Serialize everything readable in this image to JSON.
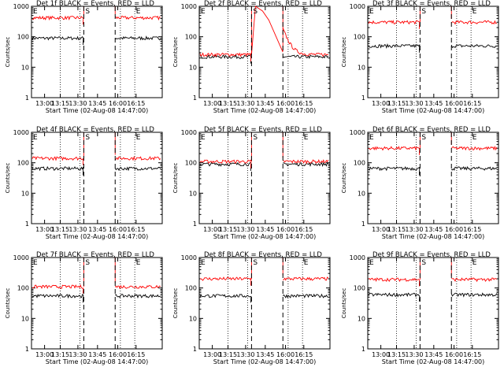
{
  "figure": {
    "xlabel": "Start Time (02-Aug-08 14:47:00)",
    "ylabel": "Counts/sec",
    "x_ticks": [
      "13:00",
      "13:15",
      "13:30",
      "13:45",
      "16:00",
      "16:15"
    ],
    "y_ticks": [
      "1",
      "10",
      "100",
      "1000"
    ],
    "markers": {
      "start": "S",
      "end": "E"
    },
    "colors": {
      "events": "#000000",
      "lld": "#ff0000"
    }
  },
  "chart_data": [
    {
      "type": "line",
      "title": "Det 1f BLACK = Events, RED = LLD",
      "xlabel": "Start Time (02-Aug-08 14:47:00)",
      "ylabel": "Counts/sec",
      "yscale": "log",
      "ylim": [
        1,
        1000
      ],
      "events_level": 90,
      "lld_level": 420,
      "events_spike": null,
      "lld_spike": null,
      "lld_decay": false,
      "series": [
        {
          "name": "Events",
          "color": "#000000"
        },
        {
          "name": "LLD",
          "color": "#ff0000"
        }
      ]
    },
    {
      "type": "line",
      "title": "Det 2f BLACK = Events, RED = LLD",
      "xlabel": "Start Time (02-Aug-08 14:47:00)",
      "ylabel": "Counts/sec",
      "yscale": "log",
      "ylim": [
        1,
        1000
      ],
      "events_level": 22,
      "lld_level": 26,
      "events_spike": null,
      "lld_spike": 1000,
      "lld_decay": true,
      "series": [
        {
          "name": "Events",
          "color": "#000000"
        },
        {
          "name": "LLD",
          "color": "#ff0000"
        }
      ]
    },
    {
      "type": "line",
      "title": "Det 3f BLACK = Events, RED = LLD",
      "xlabel": "Start Time (02-Aug-08 14:47:00)",
      "ylabel": "Counts/sec",
      "yscale": "log",
      "ylim": [
        1,
        1000
      ],
      "events_level": 50,
      "lld_level": 300,
      "events_spike": null,
      "lld_spike": null,
      "lld_decay": false,
      "series": [
        {
          "name": "Events",
          "color": "#000000"
        },
        {
          "name": "LLD",
          "color": "#ff0000"
        }
      ]
    },
    {
      "type": "line",
      "title": "Det 4f BLACK = Events, RED = LLD",
      "xlabel": "Start Time (02-Aug-08 14:47:00)",
      "ylabel": "Counts/sec",
      "yscale": "log",
      "ylim": [
        1,
        1000
      ],
      "events_level": 65,
      "lld_level": 140,
      "events_spike": null,
      "lld_spike": null,
      "lld_decay": false,
      "series": [
        {
          "name": "Events",
          "color": "#000000"
        },
        {
          "name": "LLD",
          "color": "#ff0000"
        }
      ]
    },
    {
      "type": "line",
      "title": "Det 5f BLACK = Events, RED = LLD",
      "xlabel": "Start Time (02-Aug-08 14:47:00)",
      "ylabel": "Counts/sec",
      "yscale": "log",
      "ylim": [
        1,
        1000
      ],
      "events_level": 90,
      "lld_level": 110,
      "events_spike": null,
      "lld_spike": null,
      "lld_decay": false,
      "series": [
        {
          "name": "Events",
          "color": "#000000"
        },
        {
          "name": "LLD",
          "color": "#ff0000"
        }
      ]
    },
    {
      "type": "line",
      "title": "Det 6f BLACK = Events, RED = LLD",
      "xlabel": "Start Time (02-Aug-08 14:47:00)",
      "ylabel": "Counts/sec",
      "yscale": "log",
      "ylim": [
        1,
        1000
      ],
      "events_level": 65,
      "lld_level": 300,
      "events_spike": null,
      "lld_spike": null,
      "lld_decay": false,
      "series": [
        {
          "name": "Events",
          "color": "#000000"
        },
        {
          "name": "LLD",
          "color": "#ff0000"
        }
      ]
    },
    {
      "type": "line",
      "title": "Det 7f BLACK = Events, RED = LLD",
      "xlabel": "Start Time (02-Aug-08 14:47:00)",
      "ylabel": "Counts/sec",
      "yscale": "log",
      "ylim": [
        1,
        1000
      ],
      "events_level": 55,
      "lld_level": 110,
      "events_spike": null,
      "lld_spike": null,
      "lld_decay": false,
      "series": [
        {
          "name": "Events",
          "color": "#000000"
        },
        {
          "name": "LLD",
          "color": "#ff0000"
        }
      ]
    },
    {
      "type": "line",
      "title": "Det 8f BLACK = Events, RED = LLD",
      "xlabel": "Start Time (02-Aug-08 14:47:00)",
      "ylabel": "Counts/sec",
      "yscale": "log",
      "ylim": [
        1,
        1000
      ],
      "events_level": 55,
      "lld_level": 200,
      "events_spike": null,
      "lld_spike": null,
      "lld_decay": false,
      "series": [
        {
          "name": "Events",
          "color": "#000000"
        },
        {
          "name": "LLD",
          "color": "#ff0000"
        }
      ]
    },
    {
      "type": "line",
      "title": "Det 9f BLACK = Events, RED = LLD",
      "xlabel": "Start Time (02-Aug-08 14:47:00)",
      "ylabel": "Counts/sec",
      "yscale": "log",
      "ylim": [
        1,
        1000
      ],
      "events_level": 60,
      "lld_level": 190,
      "events_spike": null,
      "lld_spike": null,
      "lld_decay": false,
      "series": [
        {
          "name": "Events",
          "color": "#000000"
        },
        {
          "name": "LLD",
          "color": "#ff0000"
        }
      ]
    }
  ]
}
